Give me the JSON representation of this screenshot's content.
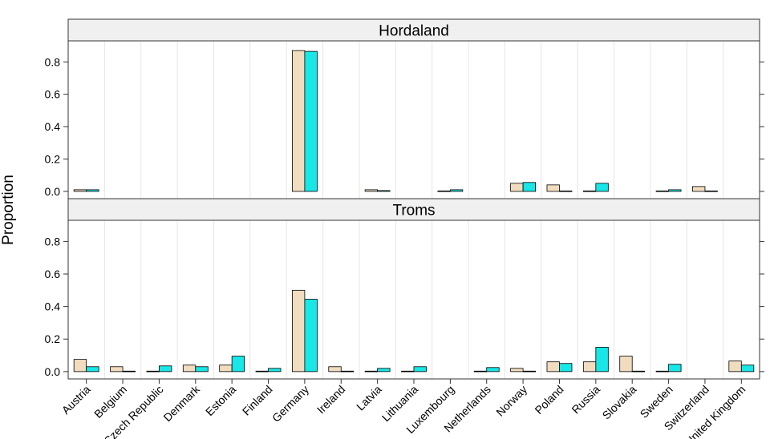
{
  "chart_data": {
    "type": "bar",
    "ylabel": "Proportion",
    "ylim": [
      -0.045,
      0.93
    ],
    "yticks": [
      "0.0",
      "0.2",
      "0.4",
      "0.6",
      "0.8"
    ],
    "grid": true,
    "colors": [
      "#f1dcbf",
      "#19e6e6"
    ],
    "categories": [
      "Austria",
      "Belgium",
      "Czech Republic",
      "Denmark",
      "Estonia",
      "Finland",
      "Germany",
      "Ireland",
      "Latvia",
      "Lithuania",
      "Luxembourg",
      "Netherlands",
      "Norway",
      "Poland",
      "Russia",
      "Slovakia",
      "Sweden",
      "Switzerland",
      "United Kingdom"
    ],
    "panels": [
      {
        "strip": "Hordaland",
        "series": [
          {
            "values": [
              0.01,
              0.0,
              0.0,
              0.0,
              0.0,
              0.0,
              0.87,
              0.0,
              0.01,
              0.0,
              0.003,
              0.0,
              0.05,
              0.04,
              0.003,
              0.0,
              0.003,
              0.03,
              0.0
            ]
          },
          {
            "values": [
              0.01,
              0.0,
              0.0,
              0.0,
              0.0,
              0.0,
              0.865,
              0.0,
              0.005,
              0.0,
              0.01,
              0.0,
              0.055,
              0.003,
              0.05,
              0.0,
              0.01,
              0.003,
              0.0
            ]
          }
        ]
      },
      {
        "strip": "Troms",
        "series": [
          {
            "values": [
              0.075,
              0.03,
              0.003,
              0.04,
              0.04,
              0.003,
              0.5,
              0.03,
              0.003,
              0.003,
              0.0,
              0.003,
              0.02,
              0.06,
              0.06,
              0.095,
              0.003,
              0.0,
              0.065
            ]
          },
          {
            "values": [
              0.03,
              0.003,
              0.035,
              0.03,
              0.095,
              0.02,
              0.445,
              0.003,
              0.02,
              0.03,
              0.0,
              0.025,
              0.003,
              0.05,
              0.15,
              0.003,
              0.045,
              0.0,
              0.04
            ]
          }
        ]
      }
    ]
  }
}
